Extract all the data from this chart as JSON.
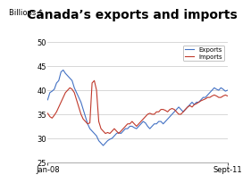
{
  "title": "Canada’s exports and imports",
  "ylabel": "Billions $",
  "x_start_label": "Jan-08",
  "x_end_label": "Sept-11",
  "ylim": [
    25,
    50
  ],
  "yticks": [
    25,
    30,
    35,
    40,
    45,
    50
  ],
  "exports_color": "#4472c4",
  "imports_color": "#c0392b",
  "legend_exports": "Exports",
  "legend_imports": "Imports",
  "background_color": "#ffffff",
  "grid_color": "#c8c8c8",
  "exports": [
    38.0,
    39.5,
    39.8,
    40.2,
    41.5,
    42.0,
    43.8,
    44.2,
    43.5,
    43.0,
    42.5,
    42.0,
    40.5,
    39.5,
    38.5,
    37.5,
    36.0,
    34.5,
    33.0,
    32.0,
    31.5,
    31.0,
    30.5,
    29.5,
    29.0,
    28.5,
    29.0,
    29.5,
    29.8,
    30.0,
    30.5,
    31.0,
    31.2,
    31.0,
    31.5,
    32.0,
    32.0,
    32.5,
    32.5,
    32.2,
    32.0,
    32.5,
    33.0,
    33.5,
    33.2,
    32.5,
    32.0,
    32.5,
    33.0,
    33.0,
    33.5,
    33.5,
    33.0,
    33.5,
    34.0,
    34.5,
    35.0,
    35.5,
    36.0,
    36.5,
    36.0,
    35.5,
    36.0,
    36.5,
    37.0,
    37.5,
    37.0,
    37.5,
    37.5,
    38.0,
    38.5,
    38.5,
    39.0,
    39.5,
    40.0,
    40.5,
    40.2,
    40.0,
    40.5,
    40.2,
    39.8,
    40.0
  ],
  "imports": [
    35.2,
    34.5,
    34.2,
    34.8,
    35.5,
    36.5,
    37.5,
    38.5,
    39.5,
    40.0,
    40.5,
    40.2,
    39.5,
    38.0,
    36.5,
    35.0,
    34.0,
    33.5,
    33.0,
    33.2,
    41.5,
    42.0,
    40.0,
    33.5,
    32.0,
    31.5,
    31.0,
    31.2,
    31.0,
    31.5,
    32.0,
    31.5,
    31.0,
    31.5,
    32.0,
    32.5,
    33.0,
    33.0,
    33.5,
    33.0,
    32.5,
    33.0,
    33.5,
    34.0,
    34.5,
    35.0,
    35.2,
    35.0,
    35.0,
    35.5,
    35.5,
    36.0,
    36.0,
    35.8,
    35.5,
    36.0,
    36.2,
    36.0,
    35.5,
    35.0,
    35.0,
    35.5,
    36.0,
    36.5,
    36.8,
    36.5,
    37.0,
    37.2,
    37.5,
    37.8,
    38.0,
    38.2,
    38.5,
    38.5,
    38.8,
    39.0,
    38.8,
    38.5,
    38.5,
    38.8,
    39.0,
    38.8
  ],
  "title_fontsize": 10,
  "tick_fontsize": 6,
  "ylabel_fontsize": 6,
  "legend_fontsize": 5
}
